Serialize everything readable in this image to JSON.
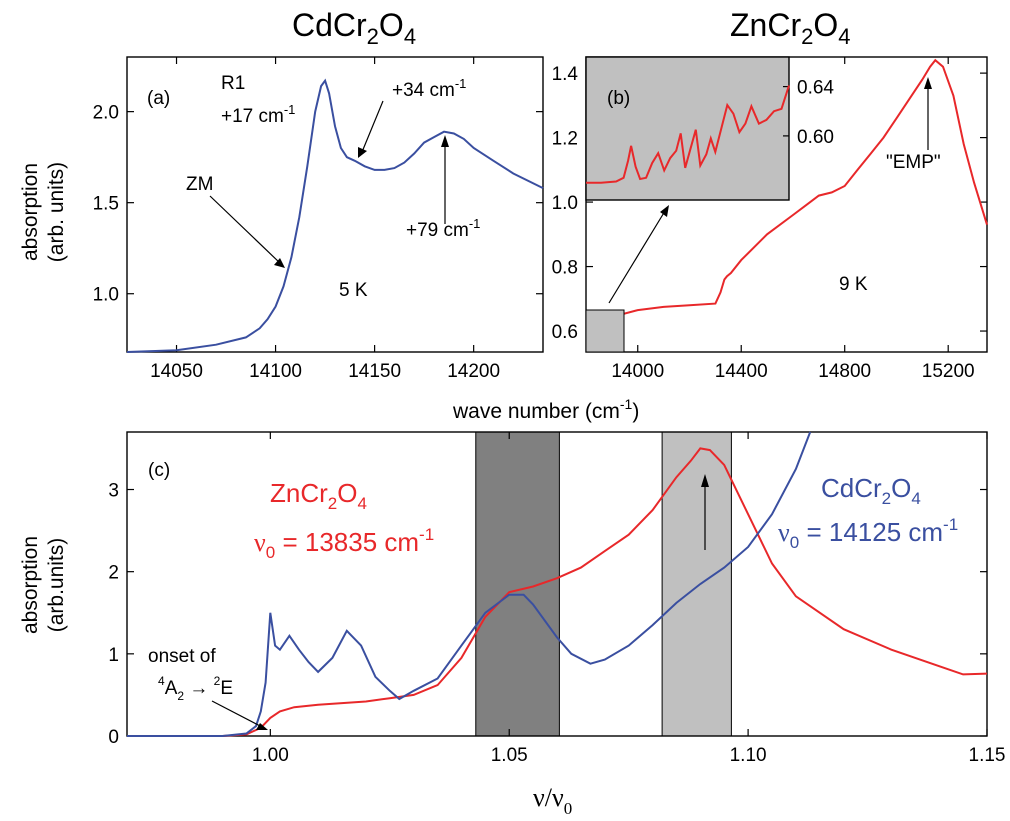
{
  "titles": {
    "cd": "CdCr",
    "cd_sub1": "2",
    "cd_o": "O",
    "cd_sub2": "4",
    "zn": "ZnCr",
    "zn_sub1": "2",
    "zn_o": "O",
    "zn_sub2": "4"
  },
  "ylabel_top": [
    "absorption",
    "(arb. units)"
  ],
  "xlabel_top": "wave number (cm",
  "xlabel_top_sup": "-1",
  "xlabel_top_end": ")",
  "ylabel_bottom": [
    "absorption",
    "(arb.units)"
  ],
  "xlabel_bottom": "ν/ν",
  "xlabel_bottom_sub": "0",
  "panel_a": {
    "label": "(a)",
    "annotations": {
      "r1": "R1",
      "r1_shift": "+17 cm",
      "shift34": "+34 cm",
      "shift79": "+79 cm",
      "sup": "-1",
      "zm": "ZM",
      "temp": "5 K"
    }
  },
  "panel_b": {
    "label": "(b)",
    "annotations": {
      "emp": "\"EMP\"",
      "temp": "9 K"
    }
  },
  "panel_c": {
    "label": "(c)",
    "zn_name": "ZnCr",
    "zn_nu": "ν",
    "zn_nu_sub": "0",
    "zn_value": " = 13835 cm",
    "zn_sup": "-1",
    "cd_name": "CdCr",
    "cd_nu": "ν",
    "cd_nu_sub": "0",
    "cd_value": " = 14125 cm",
    "cd_sup": "-1",
    "sub2": "2",
    "sub4": "4",
    "onset_line1": "onset of",
    "onset_sup4": "4",
    "onset_A": "A",
    "onset_sub2": "2",
    "onset_arrow": " → ",
    "onset_sup2": "2",
    "onset_E": "E"
  },
  "colors": {
    "cd": "#3a4fa0",
    "zn": "#e8282a",
    "dark_band": "#808080",
    "light_band": "#c0c0c0",
    "inset_bg": "#c0c0c0"
  },
  "chart_data": [
    {
      "id": "a",
      "type": "line",
      "xlim": [
        14025,
        14235
      ],
      "ylim": [
        0.68,
        2.3
      ],
      "xticks": [
        14050,
        14100,
        14150,
        14200
      ],
      "yticks": [
        1.0,
        1.5,
        2.0
      ],
      "series": [
        {
          "name": "CdCr2O4",
          "color": "#3a4fa0",
          "x": [
            14025,
            14050,
            14070,
            14085,
            14092,
            14096,
            14100,
            14104,
            14108,
            14112,
            14116,
            14120,
            14123,
            14125,
            14127,
            14130,
            14133,
            14136,
            14140,
            14145,
            14150,
            14155,
            14160,
            14165,
            14170,
            14175,
            14180,
            14185,
            14190,
            14195,
            14200,
            14210,
            14220,
            14235
          ],
          "y": [
            0.68,
            0.69,
            0.72,
            0.76,
            0.81,
            0.86,
            0.93,
            1.04,
            1.2,
            1.42,
            1.7,
            2.0,
            2.14,
            2.17,
            2.1,
            1.92,
            1.8,
            1.75,
            1.73,
            1.7,
            1.68,
            1.68,
            1.69,
            1.72,
            1.77,
            1.83,
            1.86,
            1.89,
            1.88,
            1.85,
            1.8,
            1.73,
            1.66,
            1.58
          ]
        }
      ]
    },
    {
      "id": "b",
      "type": "line",
      "xlim": [
        13800,
        15350
      ],
      "ylim": [
        0.535,
        1.45
      ],
      "xticks": [
        14000,
        14400,
        14800,
        15200
      ],
      "yticks": [
        0.6,
        0.8,
        1.0,
        1.2,
        1.4
      ],
      "series": [
        {
          "name": "ZnCr2O4",
          "color": "#e8282a",
          "x": [
            13800,
            13840,
            13860,
            13870,
            13880,
            13890,
            13900,
            13910,
            13930,
            14000,
            14100,
            14200,
            14300,
            14320,
            14335,
            14345,
            14360,
            14400,
            14500,
            14600,
            14650,
            14700,
            14750,
            14800,
            14850,
            14900,
            14950,
            15000,
            15050,
            15100,
            15130,
            15150,
            15180,
            15220,
            15260,
            15300,
            15350
          ],
          "y": [
            0.57,
            0.575,
            0.585,
            0.6,
            0.61,
            0.625,
            0.63,
            0.635,
            0.65,
            0.665,
            0.675,
            0.68,
            0.685,
            0.72,
            0.76,
            0.77,
            0.78,
            0.82,
            0.9,
            0.96,
            0.99,
            1.02,
            1.03,
            1.05,
            1.1,
            1.15,
            1.2,
            1.26,
            1.32,
            1.38,
            1.42,
            1.44,
            1.42,
            1.33,
            1.18,
            1.06,
            0.93
          ]
        }
      ]
    },
    {
      "id": "b-inset",
      "type": "line",
      "xlim": [
        13790,
        13925
      ],
      "ylim": [
        0.548,
        0.664
      ],
      "yticks": [
        0.6,
        0.64
      ],
      "series": [
        {
          "name": "ZnCr2O4",
          "color": "#e8282a",
          "x": [
            13790,
            13800,
            13810,
            13815,
            13818,
            13820,
            13823,
            13826,
            13830,
            13834,
            13838,
            13842,
            13846,
            13850,
            13853,
            13856,
            13860,
            13863,
            13866,
            13870,
            13873,
            13876,
            13880,
            13884,
            13888,
            13892,
            13896,
            13900,
            13905,
            13910,
            13915,
            13920,
            13925
          ],
          "y": [
            0.562,
            0.562,
            0.563,
            0.566,
            0.58,
            0.592,
            0.575,
            0.565,
            0.566,
            0.578,
            0.586,
            0.572,
            0.582,
            0.588,
            0.602,
            0.574,
            0.592,
            0.605,
            0.576,
            0.585,
            0.598,
            0.587,
            0.606,
            0.625,
            0.618,
            0.603,
            0.61,
            0.624,
            0.61,
            0.613,
            0.62,
            0.622,
            0.641
          ]
        }
      ]
    },
    {
      "id": "c",
      "type": "line",
      "xlim": [
        0.97,
        1.15
      ],
      "ylim": [
        0,
        3.7
      ],
      "xticks": [
        1.0,
        1.05,
        1.1,
        1.15
      ],
      "yticks": [
        0,
        1,
        2,
        3
      ],
      "bands": [
        {
          "from": 1.043,
          "to": 1.0605,
          "color": "#808080"
        },
        {
          "from": 1.082,
          "to": 1.0965,
          "color": "#c0c0c0"
        }
      ],
      "series": [
        {
          "name": "ZnCr2O4",
          "color": "#e8282a",
          "x": [
            0.97,
            0.99,
            0.995,
            0.998,
            1.0,
            1.002,
            1.005,
            1.01,
            1.02,
            1.025,
            1.03,
            1.035,
            1.04,
            1.045,
            1.05,
            1.055,
            1.06,
            1.065,
            1.07,
            1.075,
            1.08,
            1.085,
            1.088,
            1.09,
            1.092,
            1.095,
            1.1,
            1.105,
            1.11,
            1.12,
            1.13,
            1.14,
            1.145,
            1.15
          ],
          "y": [
            0.0,
            0.0,
            0.02,
            0.1,
            0.22,
            0.3,
            0.35,
            0.38,
            0.42,
            0.46,
            0.5,
            0.62,
            0.95,
            1.45,
            1.75,
            1.82,
            1.92,
            2.05,
            2.25,
            2.45,
            2.75,
            3.15,
            3.35,
            3.5,
            3.48,
            3.3,
            2.7,
            2.1,
            1.7,
            1.3,
            1.05,
            0.85,
            0.75,
            0.76
          ]
        },
        {
          "name": "CdCr2O4",
          "color": "#3a4fa0",
          "x": [
            0.97,
            0.99,
            0.995,
            0.997,
            0.998,
            0.999,
            1.0,
            1.001,
            1.002,
            1.004,
            1.006,
            1.008,
            1.01,
            1.013,
            1.016,
            1.019,
            1.022,
            1.025,
            1.027,
            1.03,
            1.035,
            1.04,
            1.045,
            1.05,
            1.053,
            1.055,
            1.06,
            1.063,
            1.067,
            1.07,
            1.075,
            1.08,
            1.085,
            1.09,
            1.095,
            1.1,
            1.105,
            1.11,
            1.113
          ],
          "y": [
            0.0,
            0.0,
            0.03,
            0.12,
            0.3,
            0.65,
            1.5,
            1.1,
            1.05,
            1.22,
            1.05,
            0.9,
            0.78,
            0.95,
            1.28,
            1.1,
            0.72,
            0.55,
            0.45,
            0.55,
            0.7,
            1.1,
            1.5,
            1.72,
            1.72,
            1.6,
            1.2,
            1.0,
            0.88,
            0.93,
            1.1,
            1.35,
            1.62,
            1.85,
            2.05,
            2.3,
            2.7,
            3.25,
            3.7
          ]
        }
      ]
    }
  ]
}
